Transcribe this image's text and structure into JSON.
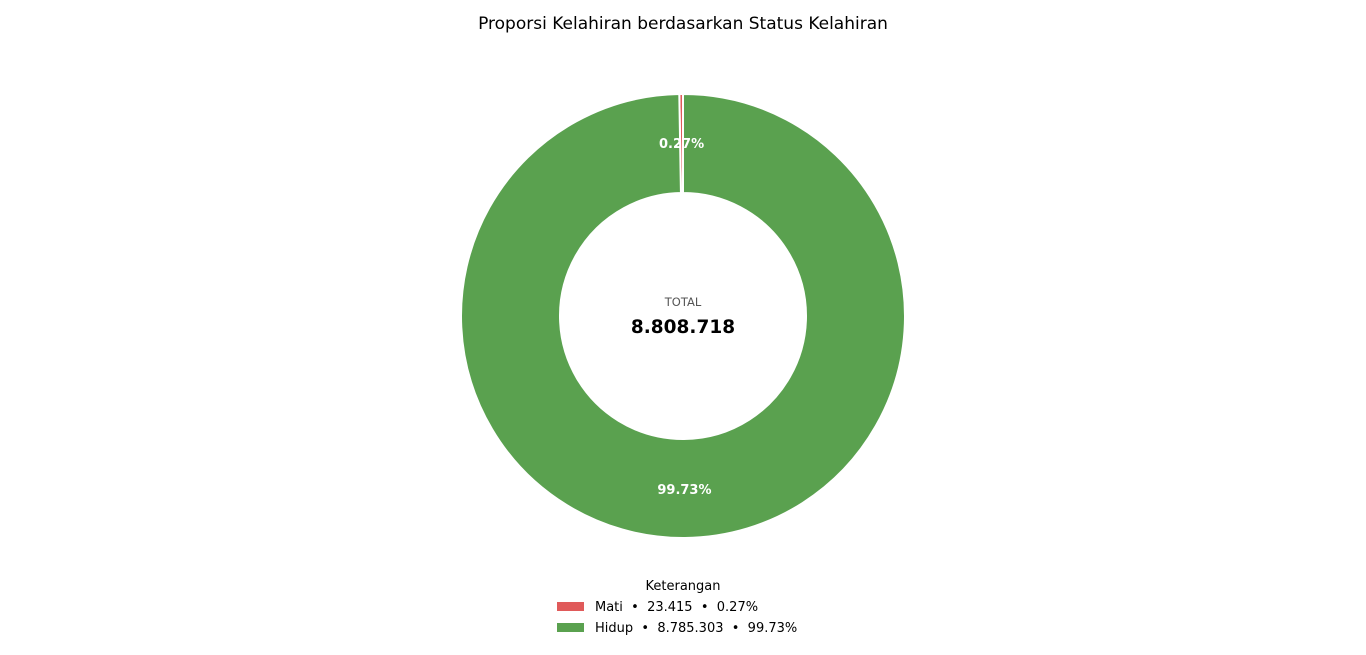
{
  "chart_data": {
    "type": "pie",
    "style": "donut",
    "title": "Proporsi Kelahiran berdasarkan Status Kelahiran",
    "center": {
      "caption": "TOTAL",
      "value_text": "8.808.718",
      "value": 8808718
    },
    "slices": [
      {
        "label": "Mati",
        "value": 23415,
        "percent": 0.27,
        "percent_text": "0.27%",
        "color": "#e05a5a",
        "legend_text": "Mati  •  23.415  •  0.27%"
      },
      {
        "label": "Hidup",
        "value": 8785303,
        "percent": 99.73,
        "percent_text": "99.73%",
        "color": "#5aa14f",
        "legend_text": "Hidup  •  8.785.303  •  99.73%"
      }
    ],
    "start": "top",
    "direction": "counterclockwise",
    "legend": {
      "title": "Keterangan",
      "placement": "bottom-center"
    }
  }
}
